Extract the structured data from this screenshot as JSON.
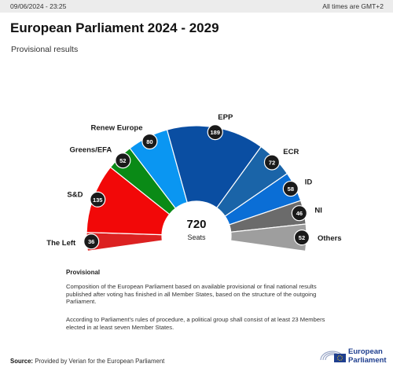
{
  "header": {
    "timestamp": "09/06/2024 - 23:25",
    "timezone_note": "All times are GMT+2",
    "title": "European Parliament 2024 - 2029",
    "subtitle": "Provisional results"
  },
  "chart_data": {
    "type": "hemicycle",
    "total_seats": 720,
    "center_value": "720",
    "center_label": "Seats",
    "series": [
      {
        "name": "The Left",
        "value": 36,
        "color": "#dc2121"
      },
      {
        "name": "S&D",
        "value": 135,
        "color": "#f20808"
      },
      {
        "name": "Greens/EFA",
        "value": 52,
        "color": "#0a8a16"
      },
      {
        "name": "Renew Europe",
        "value": 80,
        "color": "#0a96f2"
      },
      {
        "name": "EPP",
        "value": 189,
        "color": "#0a4ea2"
      },
      {
        "name": "ECR",
        "value": 72,
        "color": "#1a64a8"
      },
      {
        "name": "ID",
        "value": 58,
        "color": "#0a6ed6"
      },
      {
        "name": "NI",
        "value": 46,
        "color": "#6b6b6b"
      },
      {
        "name": "Others",
        "value": 52,
        "color": "#9e9e9e"
      }
    ]
  },
  "notes": {
    "heading": "Provisional",
    "paragraph1": "Composition of the European Parliament based on available provisional or final national results published after voting has finished in all Member States, based on the structure of the outgoing Parliament.",
    "paragraph2": "According to Parliament's rules of procedure, a political group shall consist of at least 23 Members elected in at least seven Member States."
  },
  "footer": {
    "source_label": "Source:",
    "source_text": "Provided by Verian for the European Parliament",
    "logo_line1": "European",
    "logo_line2": "Parliament"
  }
}
